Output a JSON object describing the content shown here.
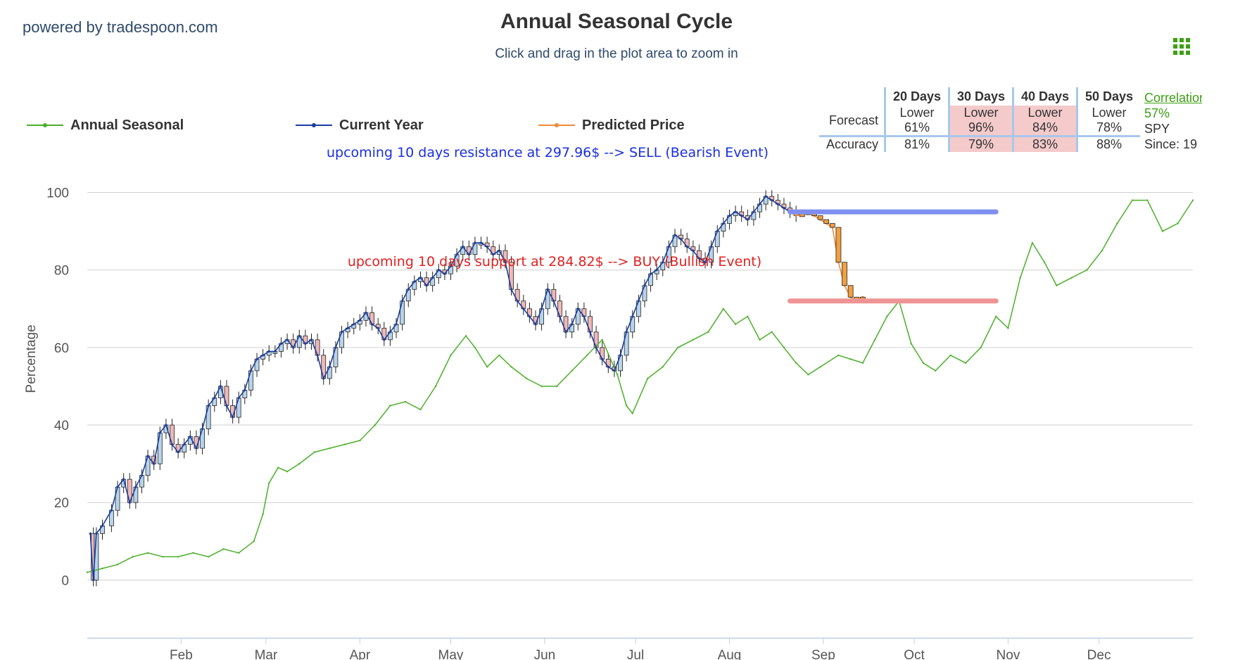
{
  "header": {
    "powered_by": "powered by tradespoon.com",
    "title": "Annual Seasonal Cycle",
    "subtitle": "Click and drag in the plot area to zoom in"
  },
  "menu_icon": "grid-menu-icon",
  "legend": [
    {
      "name": "Annual Seasonal",
      "color": "#4caf2a"
    },
    {
      "name": "Current Year",
      "color": "#1a3d9e"
    },
    {
      "name": "Predicted Price",
      "color": "#f08a3c"
    }
  ],
  "forecast_table": {
    "columns": [
      "20 Days",
      "30 Days",
      "40 Days",
      "50 Days"
    ],
    "forecast_label": "Forecast",
    "accuracy_label": "Accuracy",
    "forecast": [
      {
        "dir": "Lower",
        "pct": "61%",
        "highlight": false
      },
      {
        "dir": "Lower",
        "pct": "96%",
        "highlight": true
      },
      {
        "dir": "Lower",
        "pct": "84%",
        "highlight": true
      },
      {
        "dir": "Lower",
        "pct": "78%",
        "highlight": false
      }
    ],
    "accuracy": [
      {
        "pct": "81%",
        "highlight": false
      },
      {
        "pct": "79%",
        "highlight": true
      },
      {
        "pct": "83%",
        "highlight": true
      },
      {
        "pct": "88%",
        "highlight": false
      }
    ]
  },
  "correlation": {
    "title": "Correlation",
    "value": "57%",
    "symbol": "SPY",
    "since": "Since: 19"
  },
  "colors": {
    "seasonal": "#4caf2a",
    "current": "#1a3d9e",
    "predicted": "#f08a3c",
    "candle_up": "#b8d4ea",
    "candle_down": "#f0b8b8",
    "resistance_line": "#7f8ff0",
    "support_line": "#ef9494",
    "resistance_text": "#1a2fe0",
    "support_text": "#e02020"
  },
  "chart_data": {
    "type": "line",
    "title": "Annual Seasonal Cycle",
    "ylabel": "Percentage",
    "ylim": [
      -15,
      105
    ],
    "yticks": [
      0,
      20,
      40,
      60,
      80,
      100
    ],
    "x_months": [
      "Feb",
      "Mar",
      "Apr",
      "May",
      "Jun",
      "Jul",
      "Aug",
      "Sep",
      "Oct",
      "Nov",
      "Dec"
    ],
    "x_domain_days": [
      0,
      365
    ],
    "month_tick_days": [
      31,
      59,
      90,
      120,
      151,
      181,
      212,
      243,
      273,
      304,
      334
    ],
    "series": [
      {
        "name": "Annual Seasonal",
        "points": [
          [
            0,
            2
          ],
          [
            5,
            3
          ],
          [
            10,
            4
          ],
          [
            15,
            6
          ],
          [
            20,
            7
          ],
          [
            25,
            6
          ],
          [
            30,
            6
          ],
          [
            35,
            7
          ],
          [
            40,
            6
          ],
          [
            45,
            8
          ],
          [
            50,
            7
          ],
          [
            55,
            10
          ],
          [
            58,
            17
          ],
          [
            60,
            25
          ],
          [
            63,
            29
          ],
          [
            66,
            28
          ],
          [
            70,
            30
          ],
          [
            75,
            33
          ],
          [
            80,
            34
          ],
          [
            85,
            35
          ],
          [
            90,
            36
          ],
          [
            95,
            40
          ],
          [
            100,
            45
          ],
          [
            105,
            46
          ],
          [
            110,
            44
          ],
          [
            115,
            50
          ],
          [
            120,
            58
          ],
          [
            125,
            63
          ],
          [
            128,
            60
          ],
          [
            132,
            55
          ],
          [
            136,
            58
          ],
          [
            140,
            55
          ],
          [
            145,
            52
          ],
          [
            150,
            50
          ],
          [
            155,
            50
          ],
          [
            160,
            54
          ],
          [
            165,
            58
          ],
          [
            170,
            62
          ],
          [
            175,
            53
          ],
          [
            178,
            45
          ],
          [
            180,
            43
          ],
          [
            185,
            52
          ],
          [
            190,
            55
          ],
          [
            195,
            60
          ],
          [
            200,
            62
          ],
          [
            205,
            64
          ],
          [
            210,
            70
          ],
          [
            214,
            66
          ],
          [
            218,
            68
          ],
          [
            222,
            62
          ],
          [
            226,
            64
          ],
          [
            230,
            60
          ],
          [
            234,
            56
          ],
          [
            238,
            53
          ],
          [
            242,
            55
          ],
          [
            248,
            58
          ],
          [
            252,
            57
          ],
          [
            256,
            56
          ],
          [
            260,
            62
          ],
          [
            264,
            68
          ],
          [
            268,
            72
          ],
          [
            272,
            61
          ],
          [
            276,
            56
          ],
          [
            280,
            54
          ],
          [
            285,
            58
          ],
          [
            290,
            56
          ],
          [
            295,
            60
          ],
          [
            300,
            68
          ],
          [
            304,
            65
          ],
          [
            308,
            78
          ],
          [
            312,
            87
          ],
          [
            316,
            82
          ],
          [
            320,
            76
          ],
          [
            325,
            78
          ],
          [
            330,
            80
          ],
          [
            335,
            85
          ],
          [
            340,
            92
          ],
          [
            345,
            98
          ],
          [
            350,
            98
          ],
          [
            355,
            90
          ],
          [
            360,
            92
          ],
          [
            365,
            98
          ]
        ]
      },
      {
        "name": "Current Year",
        "points": [
          [
            1,
            12
          ],
          [
            2,
            0
          ],
          [
            3,
            12
          ],
          [
            5,
            14
          ],
          [
            8,
            18
          ],
          [
            10,
            24
          ],
          [
            12,
            26
          ],
          [
            14,
            20
          ],
          [
            16,
            24
          ],
          [
            18,
            27
          ],
          [
            20,
            32
          ],
          [
            22,
            30
          ],
          [
            24,
            38
          ],
          [
            26,
            40
          ],
          [
            28,
            35
          ],
          [
            30,
            33
          ],
          [
            32,
            35
          ],
          [
            34,
            37
          ],
          [
            36,
            34
          ],
          [
            38,
            39
          ],
          [
            40,
            45
          ],
          [
            42,
            47
          ],
          [
            44,
            50
          ],
          [
            46,
            45
          ],
          [
            48,
            42
          ],
          [
            50,
            47
          ],
          [
            52,
            49
          ],
          [
            54,
            54
          ],
          [
            56,
            57
          ],
          [
            58,
            58
          ],
          [
            60,
            59
          ],
          [
            62,
            59
          ],
          [
            64,
            61
          ],
          [
            66,
            62
          ],
          [
            68,
            60
          ],
          [
            70,
            63
          ],
          [
            72,
            61
          ],
          [
            74,
            62
          ],
          [
            76,
            58
          ],
          [
            78,
            52
          ],
          [
            80,
            55
          ],
          [
            82,
            60
          ],
          [
            84,
            64
          ],
          [
            86,
            65
          ],
          [
            88,
            66
          ],
          [
            90,
            67
          ],
          [
            92,
            69
          ],
          [
            94,
            66
          ],
          [
            96,
            65
          ],
          [
            98,
            62
          ],
          [
            100,
            64
          ],
          [
            102,
            66
          ],
          [
            104,
            72
          ],
          [
            106,
            75
          ],
          [
            108,
            77
          ],
          [
            110,
            78
          ],
          [
            112,
            76
          ],
          [
            114,
            78
          ],
          [
            116,
            80
          ],
          [
            118,
            79
          ],
          [
            120,
            81
          ],
          [
            122,
            84
          ],
          [
            124,
            86
          ],
          [
            126,
            84
          ],
          [
            128,
            87
          ],
          [
            130,
            87
          ],
          [
            132,
            86
          ],
          [
            134,
            84
          ],
          [
            136,
            85
          ],
          [
            138,
            82
          ],
          [
            140,
            75
          ],
          [
            142,
            72
          ],
          [
            144,
            70
          ],
          [
            146,
            68
          ],
          [
            148,
            66
          ],
          [
            150,
            70
          ],
          [
            152,
            75
          ],
          [
            154,
            72
          ],
          [
            156,
            68
          ],
          [
            158,
            64
          ],
          [
            160,
            66
          ],
          [
            162,
            70
          ],
          [
            164,
            68
          ],
          [
            166,
            64
          ],
          [
            168,
            60
          ],
          [
            170,
            57
          ],
          [
            172,
            55
          ],
          [
            174,
            54
          ],
          [
            176,
            58
          ],
          [
            178,
            64
          ],
          [
            180,
            68
          ],
          [
            182,
            72
          ],
          [
            184,
            76
          ],
          [
            186,
            79
          ],
          [
            188,
            80
          ],
          [
            190,
            82
          ],
          [
            192,
            86
          ],
          [
            194,
            89
          ],
          [
            196,
            88
          ],
          [
            198,
            86
          ],
          [
            200,
            85
          ],
          [
            202,
            83
          ],
          [
            204,
            82
          ],
          [
            206,
            86
          ],
          [
            208,
            90
          ],
          [
            210,
            92
          ],
          [
            212,
            94
          ],
          [
            214,
            95
          ],
          [
            216,
            94
          ],
          [
            218,
            93
          ],
          [
            220,
            95
          ],
          [
            222,
            97
          ],
          [
            224,
            99
          ],
          [
            226,
            98
          ],
          [
            228,
            97
          ],
          [
            230,
            96
          ],
          [
            232,
            95
          ],
          [
            234,
            94
          ]
        ]
      },
      {
        "name": "Predicted Price",
        "points": [
          [
            232,
            95
          ],
          [
            234,
            94
          ],
          [
            236,
            94.5
          ],
          [
            238,
            95
          ],
          [
            240,
            94
          ],
          [
            242,
            93
          ],
          [
            244,
            92
          ],
          [
            246,
            91
          ],
          [
            248,
            82
          ],
          [
            250,
            76
          ],
          [
            252,
            73
          ],
          [
            254,
            72
          ],
          [
            256,
            73
          ]
        ]
      }
    ],
    "annotations": [
      {
        "text": "upcoming 10 days resistance at 297.96$ --> SELL (Bearish Event)",
        "kind": "resistance",
        "y": 95,
        "x_from": 232,
        "x_to": 300
      },
      {
        "text": "upcoming 10 days support at 284.82$ --> BUY (Bullish Event)",
        "kind": "support",
        "y": 72,
        "x_from": 232,
        "x_to": 300
      }
    ],
    "grid": true,
    "legend_position": "top-left"
  }
}
